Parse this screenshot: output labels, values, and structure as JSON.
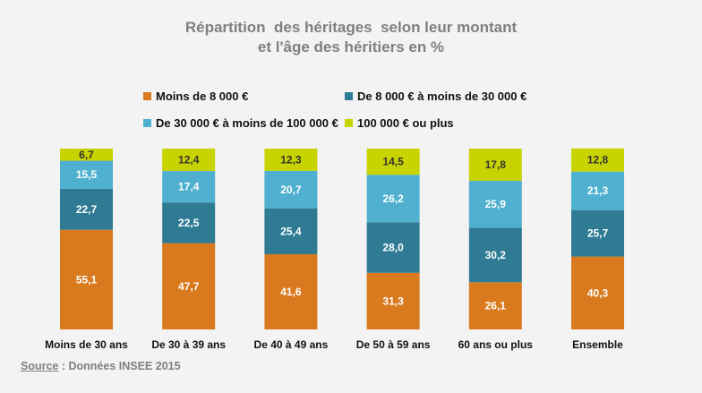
{
  "title_line1": "Répartition  des héritages  selon leur montant",
  "title_line2": "et l'âge des héritiers en %",
  "legend": [
    {
      "label": "Moins de 8 000 €",
      "color": "#d97a1f"
    },
    {
      "label": "De 8 000 € à moins de 30 000 €",
      "color": "#2e7b93"
    },
    {
      "label": "De 30 000  € à moins de 100 000  €",
      "color": "#4fb0cf"
    },
    {
      "label": "100 000  € ou plus",
      "color": "#c8d400"
    }
  ],
  "source": {
    "label": "Source",
    "text": " : Données INSEE 2015"
  },
  "chart_data": {
    "type": "bar",
    "stacked": true,
    "categories": [
      "Moins de 30 ans",
      "De 30 à 39 ans",
      "De 40 à 49 ans",
      "De 50 à 59 ans",
      "60 ans ou plus",
      "Ensemble"
    ],
    "series": [
      {
        "name": "Moins de 8 000 €",
        "values": [
          55.1,
          47.7,
          41.6,
          31.3,
          26.1,
          40.3
        ],
        "labels": [
          "55,1",
          "47,7",
          "41,6",
          "31,3",
          "26,1",
          "40,3"
        ],
        "color": "#d97a1f",
        "label_color": "#ffffff"
      },
      {
        "name": "De 8 000 € à moins de 30 000 €",
        "values": [
          22.7,
          22.5,
          25.4,
          28.0,
          30.2,
          25.7
        ],
        "labels": [
          "22,7",
          "22,5",
          "25,4",
          "28,0",
          "30,2",
          "25,7"
        ],
        "color": "#2e7b93",
        "label_color": "#ffffff"
      },
      {
        "name": "De 30 000  € à moins de 100 000  €",
        "values": [
          15.5,
          17.4,
          20.7,
          26.2,
          25.9,
          21.3
        ],
        "labels": [
          "15,5",
          "17,4",
          "20,7",
          "26,2",
          "25,9",
          "21,3"
        ],
        "color": "#4fb0cf",
        "label_color": "#ffffff"
      },
      {
        "name": "100 000  € ou plus",
        "values": [
          6.7,
          12.4,
          12.3,
          14.5,
          17.8,
          12.8
        ],
        "labels": [
          "6,7",
          "12,4",
          "12,3",
          "14,5",
          "17,8",
          "12,8"
        ],
        "color": "#c8d400",
        "label_color": "#333333"
      }
    ],
    "ylim": [
      0,
      100
    ],
    "grid": false,
    "legend_position": "top"
  }
}
